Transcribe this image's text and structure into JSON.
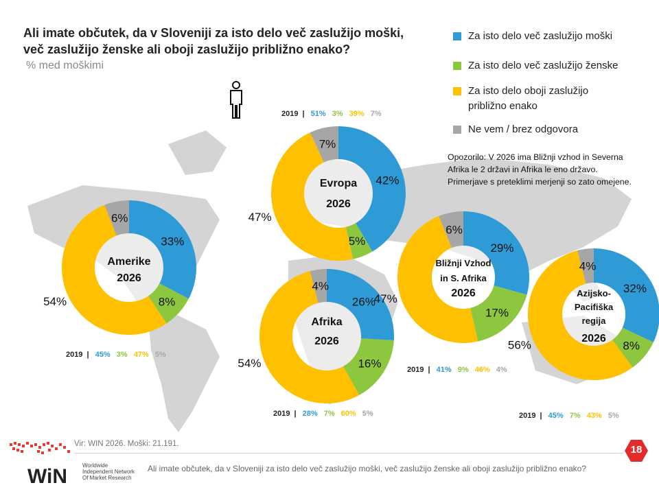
{
  "title_line1": "Ali imate občutek, da v Sloveniji za isto delo več zaslužijo moški,",
  "title_line2": "več zaslužijo ženske ali oboji zaslužijo približno enako?",
  "subtitle": "% med moškimi",
  "legend": [
    {
      "label": "Za isto delo več zaslužijo moški",
      "color": "#2e9bd6"
    },
    {
      "label": "Za isto delo več zaslužijo ženske",
      "color": "#8dc63f"
    },
    {
      "label_line1": "Za isto delo oboji zaslužijo",
      "label_line2": "približno enako",
      "color": "#ffc000"
    },
    {
      "label": "Ne vem / brez odgovora",
      "color": "#a6a6a6"
    }
  ],
  "note": "Opozorilo:  V 2026 ima Bližnji vzhod in Severna Afrika le 2 državi in Afrika le eno državo.  Primerjave s preteklimi merjenji so zato omejene.",
  "chart_data": [
    {
      "type": "donut",
      "region_line1": "Amerike",
      "region_line2": "2026",
      "values": [
        33,
        8,
        54,
        6
      ],
      "value_labels": [
        "33%",
        "8%",
        "54%",
        "6%"
      ],
      "prev_year": "2019",
      "prev_values": [
        "45%",
        "3%",
        "47%",
        "5%"
      ]
    },
    {
      "type": "donut",
      "region_line1": "Evropa",
      "region_line2": "2026",
      "values": [
        42,
        5,
        47,
        7
      ],
      "value_labels": [
        "42%",
        "5%",
        "47%",
        "7%"
      ],
      "prev_year": "2019",
      "prev_values": [
        "51%",
        "3%",
        "39%",
        "7%"
      ]
    },
    {
      "type": "donut",
      "region_line1": "Afrika",
      "region_line2": "2026",
      "values": [
        26,
        16,
        54,
        4
      ],
      "value_labels": [
        "26%",
        "16%",
        "54%",
        "4%"
      ],
      "prev_year": "2019",
      "prev_values": [
        "28%",
        "7%",
        "60%",
        "5%"
      ]
    },
    {
      "type": "donut",
      "region_line1": "Bližnji Vzhod",
      "region_line2": "in S. Afrika",
      "region_line3": "2026",
      "values": [
        29,
        17,
        47,
        6
      ],
      "value_labels": [
        "29%",
        "17%",
        "47%",
        "6%"
      ],
      "prev_year": "2019",
      "prev_values": [
        "41%",
        "9%",
        "46%",
        "4%"
      ]
    },
    {
      "type": "donut",
      "region_line1": "Azijsko-",
      "region_line2": "Pacifiška",
      "region_line3": "regija",
      "region_line4": "2026",
      "values": [
        32,
        8,
        56,
        4
      ],
      "value_labels": [
        "32%",
        "8%",
        "56%",
        "4%"
      ],
      "prev_year": "2019",
      "prev_values": [
        "45%",
        "7%",
        "43%",
        "5%"
      ]
    }
  ],
  "source": "Vir: WIN 2026.  Moški: 21.191.",
  "footer_question": "Ali imate občutek, da v Sloveniji za isto delo več zaslužijo moški, več zaslužijo ženske ali oboji zaslužijo približno enako?",
  "logo_text": "WiN",
  "logo_sub1": "Worldwide",
  "logo_sub2": "Independent Network",
  "logo_sub3": "Of Market Research",
  "page_number": "18"
}
